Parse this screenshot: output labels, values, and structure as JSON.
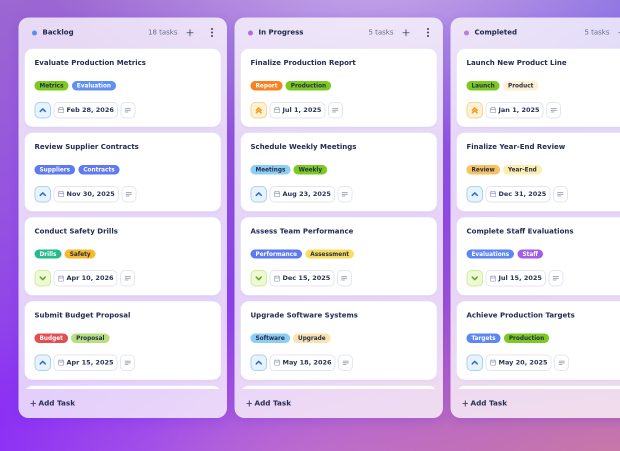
{
  "board": {
    "columns": [
      {
        "name": "Backlog",
        "count": "18 tasks",
        "dot_color": "#5b8cf0",
        "cards": [
          {
            "title": "Evaluate Production Metrics",
            "tags": [
              {
                "label": "Metrics",
                "bg": "#7cc91f",
                "fg": "#22304a"
              },
              {
                "label": "Evaluation",
                "bg": "#6190f2",
                "fg": "#ffffff"
              }
            ],
            "priority": "high",
            "due_date": "Feb 28, 2026"
          },
          {
            "title": "Review Supplier Contracts",
            "tags": [
              {
                "label": "Suppliers",
                "bg": "#5f7af0",
                "fg": "#ffffff"
              },
              {
                "label": "Contracts",
                "bg": "#5f7af0",
                "fg": "#ffffff"
              }
            ],
            "priority": "high",
            "due_date": "Nov 30, 2025"
          },
          {
            "title": "Conduct Safety Drills",
            "tags": [
              {
                "label": "Drills",
                "bg": "#27ba8c",
                "fg": "#ffffff"
              },
              {
                "label": "Safety",
                "bg": "#f6b92a",
                "fg": "#22304a"
              }
            ],
            "priority": "low",
            "due_date": "Apr 10, 2026"
          },
          {
            "title": "Submit Budget Proposal",
            "tags": [
              {
                "label": "Budget",
                "bg": "#e44d52",
                "fg": "#ffffff"
              },
              {
                "label": "Proposal",
                "bg": "#b9e07e",
                "fg": "#22304a"
              }
            ],
            "priority": "high",
            "due_date": "Apr 15, 2025"
          }
        ],
        "has_overflow_card": true,
        "add_task_label": "Add Task"
      },
      {
        "name": "In Progress",
        "count": "5 tasks",
        "dot_color": "#b06ed8",
        "cards": [
          {
            "title": "Finalize Production Report",
            "tags": [
              {
                "label": "Report",
                "bg": "#f8821f",
                "fg": "#ffffff"
              },
              {
                "label": "Production",
                "bg": "#7cc91f",
                "fg": "#22304a"
              }
            ],
            "priority": "urgent",
            "due_date": "Jul 1, 2025"
          },
          {
            "title": "Schedule Weekly Meetings",
            "tags": [
              {
                "label": "Meetings",
                "bg": "#8ecdf4",
                "fg": "#22304a"
              },
              {
                "label": "Weekly",
                "bg": "#7cc91f",
                "fg": "#22304a"
              }
            ],
            "priority": "high",
            "due_date": "Aug 23, 2025"
          },
          {
            "title": "Assess Team Performance",
            "tags": [
              {
                "label": "Performance",
                "bg": "#5f7af0",
                "fg": "#ffffff"
              },
              {
                "label": "Assessment",
                "bg": "#fadc60",
                "fg": "#22304a"
              }
            ],
            "priority": "low",
            "due_date": "Dec 15, 2025"
          },
          {
            "title": "Upgrade Software Systems",
            "tags": [
              {
                "label": "Software",
                "bg": "#8ccdf5",
                "fg": "#22304a"
              },
              {
                "label": "Upgrade",
                "bg": "#fbe2b0",
                "fg": "#22304a"
              }
            ],
            "priority": "high",
            "due_date": "May 18, 2026"
          }
        ],
        "has_overflow_card": true,
        "add_task_label": "Add Task"
      },
      {
        "name": "Completed",
        "count": "5 tasks",
        "dot_color": "#b87fd9",
        "cards": [
          {
            "title": "Launch New Product Line",
            "tags": [
              {
                "label": "Launch",
                "bg": "#7cc91f",
                "fg": "#22304a"
              },
              {
                "label": "Product",
                "bg": "#fcefd2",
                "fg": "#22304a"
              }
            ],
            "priority": "urgent",
            "due_date": "Jan 1, 2025"
          },
          {
            "title": "Finalize Year-End Review",
            "tags": [
              {
                "label": "Review",
                "bg": "#f9c160",
                "fg": "#22304a"
              },
              {
                "label": "Year-End",
                "bg": "#fdeeab",
                "fg": "#22304a"
              }
            ],
            "priority": "high",
            "due_date": "Dec 31, 2025"
          },
          {
            "title": "Complete Staff Evaluations",
            "tags": [
              {
                "label": "Evaluations",
                "bg": "#5c87f5",
                "fg": "#ffffff"
              },
              {
                "label": "Staff",
                "bg": "#a35de8",
                "fg": "#ffffff"
              }
            ],
            "priority": "low",
            "due_date": "Jul 15, 2025"
          },
          {
            "title": "Achieve Production Targets",
            "tags": [
              {
                "label": "Targets",
                "bg": "#5c87f5",
                "fg": "#ffffff"
              },
              {
                "label": "Production",
                "bg": "#7cc91f",
                "fg": "#22304a"
              }
            ],
            "priority": "high",
            "due_date": "May 20, 2025"
          }
        ],
        "has_overflow_card": true,
        "add_task_label": "Add Task"
      }
    ],
    "priority_styles": {
      "high": {
        "bg": "#e9f3fe",
        "border": "#a8d2f6",
        "icon_color": "#2673e0",
        "icon_name": "chevron-up-icon"
      },
      "urgent": {
        "bg": "#fdf2d6",
        "border": "#f4d78f",
        "icon_color": "#f29d1c",
        "icon_name": "chevrons-up-icon"
      },
      "low": {
        "bg": "#eff9d6",
        "border": "#cfec96",
        "icon_color": "#69a81a",
        "icon_name": "chevron-down-icon"
      }
    }
  }
}
